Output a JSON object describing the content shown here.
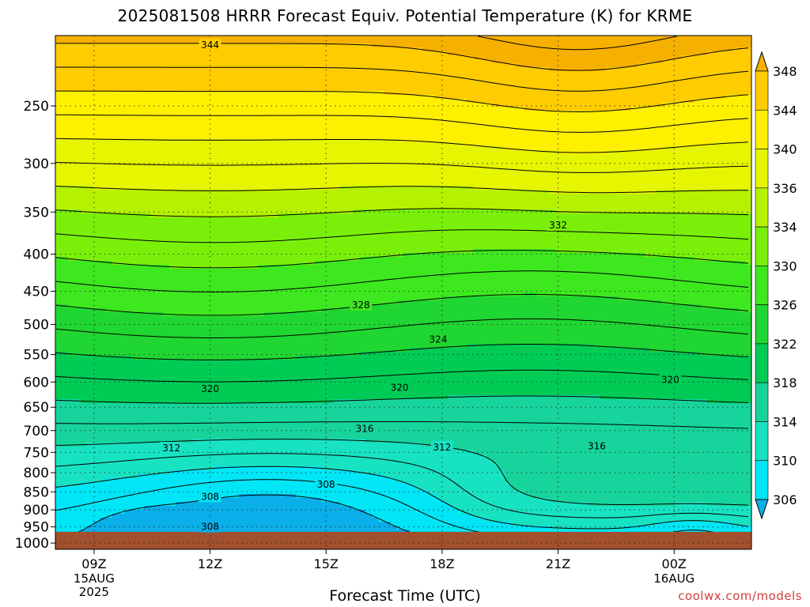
{
  "chart_data": {
    "type": "heatmap",
    "title": "2025081508 HRRR Forecast Equiv. Potential Temperature (K) for KRME",
    "xlabel": "Forecast Time (UTC)",
    "ylabel": "",
    "x_ticks": [
      {
        "label": "09Z",
        "sub": [
          "15AUG",
          "2025"
        ],
        "hour": 9
      },
      {
        "label": "12Z",
        "sub": [],
        "hour": 12
      },
      {
        "label": "15Z",
        "sub": [],
        "hour": 15
      },
      {
        "label": "18Z",
        "sub": [],
        "hour": 18
      },
      {
        "label": "21Z",
        "sub": [],
        "hour": 21
      },
      {
        "label": "00Z",
        "sub": [
          "16AUG"
        ],
        "hour": 24
      }
    ],
    "x_range_hours": [
      8,
      26
    ],
    "y_ticks": [
      250,
      300,
      350,
      400,
      450,
      500,
      550,
      600,
      650,
      700,
      750,
      800,
      850,
      900,
      950,
      1000
    ],
    "y_range_hPa": [
      200,
      1020
    ],
    "y_scale": "log",
    "y_reversed": true,
    "ground_level_hPa": 965,
    "grid": true,
    "colorbar": {
      "levels": [
        306,
        310,
        314,
        318,
        322,
        326,
        330,
        334,
        336,
        340,
        344,
        348
      ],
      "colors": [
        "#0aaee8",
        "#00e6f6",
        "#17e3c3",
        "#17d49c",
        "#00cc55",
        "#20d632",
        "#3ee81f",
        "#7af00a",
        "#b6f200",
        "#e6f500",
        "#fff000",
        "#ffcc00",
        "#f6b000"
      ]
    },
    "contour_labels": [
      {
        "text": "344",
        "hour": 12.0,
        "p": 206
      },
      {
        "text": "332",
        "hour": 21.0,
        "p": 365
      },
      {
        "text": "328",
        "hour": 15.9,
        "p": 470
      },
      {
        "text": "324",
        "hour": 17.9,
        "p": 524
      },
      {
        "text": "320",
        "hour": 12.0,
        "p": 613
      },
      {
        "text": "320",
        "hour": 16.9,
        "p": 611
      },
      {
        "text": "320",
        "hour": 23.9,
        "p": 596
      },
      {
        "text": "316",
        "hour": 16.0,
        "p": 696
      },
      {
        "text": "316",
        "hour": 22.0,
        "p": 735
      },
      {
        "text": "312",
        "hour": 11.0,
        "p": 740
      },
      {
        "text": "312",
        "hour": 18.0,
        "p": 738
      },
      {
        "text": "308",
        "hour": 15.0,
        "p": 830
      },
      {
        "text": "308",
        "hour": 12.0,
        "p": 863
      },
      {
        "text": "308",
        "hour": 12.0,
        "p": 950
      }
    ]
  },
  "credit": "coolwx.com/models"
}
